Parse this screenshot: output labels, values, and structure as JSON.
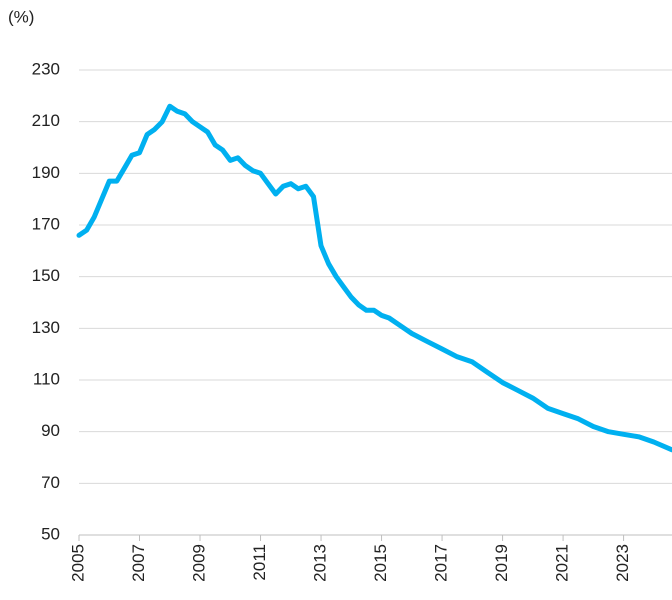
{
  "chart_data": {
    "type": "line",
    "y_label": "(%)",
    "color": "#00b0f0",
    "grid": true,
    "xlim": [
      2005,
      2024.6
    ],
    "xticks": [
      2005,
      2007,
      2009,
      2011,
      2013,
      2015,
      2017,
      2019,
      2021,
      2023
    ],
    "ylim": [
      50,
      230
    ],
    "yticks": [
      50,
      70,
      90,
      110,
      130,
      150,
      170,
      190,
      210,
      230
    ],
    "x": [
      2005.0,
      2005.25,
      2005.5,
      2005.75,
      2006.0,
      2006.25,
      2006.5,
      2006.75,
      2007.0,
      2007.25,
      2007.5,
      2007.75,
      2008.0,
      2008.25,
      2008.5,
      2008.75,
      2009.0,
      2009.25,
      2009.5,
      2009.75,
      2010.0,
      2010.25,
      2010.5,
      2010.75,
      2011.0,
      2011.25,
      2011.5,
      2011.75,
      2012.0,
      2012.25,
      2012.5,
      2012.75,
      2013.0,
      2013.25,
      2013.5,
      2013.75,
      2014.0,
      2014.25,
      2014.5,
      2014.75,
      2015.0,
      2015.25,
      2015.5,
      2015.75,
      2016.0,
      2016.5,
      2017.0,
      2017.5,
      2018.0,
      2018.5,
      2019.0,
      2019.5,
      2020.0,
      2020.5,
      2021.0,
      2021.5,
      2022.0,
      2022.5,
      2023.0,
      2023.5,
      2024.0,
      2024.6
    ],
    "values": [
      166,
      168,
      173,
      180,
      187,
      187,
      192,
      197,
      198,
      205,
      207,
      210,
      216,
      214,
      213,
      210,
      208,
      206,
      201,
      199,
      195,
      196,
      193,
      191,
      190,
      186,
      182,
      185,
      186,
      184,
      185,
      181,
      162,
      155,
      150,
      146,
      142,
      139,
      137,
      137,
      135,
      134,
      132,
      130,
      128,
      125,
      122,
      119,
      117,
      113,
      109,
      106,
      103,
      99,
      97,
      95,
      92,
      90,
      89,
      88,
      86,
      83
    ]
  }
}
